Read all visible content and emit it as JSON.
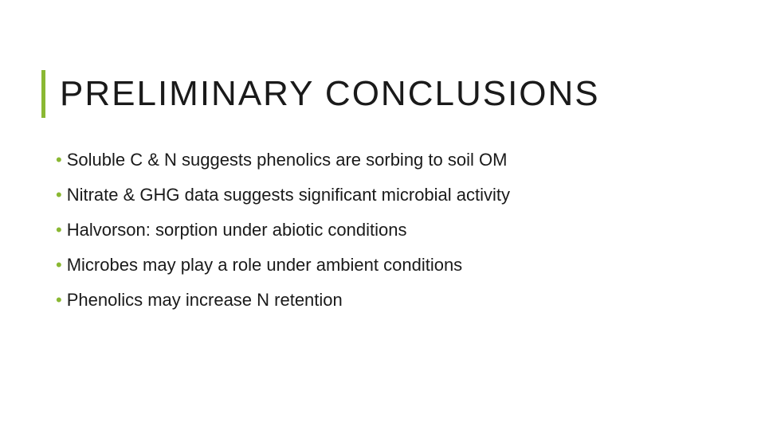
{
  "slide": {
    "title": "PRELIMINARY CONCLUSIONS",
    "title_fontsize": 44,
    "title_color": "#1a1a1a",
    "title_letter_spacing": 2,
    "accent_bar_color": "#8ab833",
    "accent_bar_width": 5,
    "accent_bar_height": 60,
    "background_color": "#ffffff",
    "bullet_color": "#8ab833",
    "bullet_glyph": "•",
    "text_color": "#1a1a1a",
    "body_fontsize": 22,
    "body_line_height": 30,
    "bullets": [
      {
        "text": "Soluble C & N suggests phenolics are sorbing to soil OM"
      },
      {
        "text": "Nitrate & GHG data suggests significant microbial activity"
      },
      {
        "text": "Halvorson: sorption under abiotic conditions"
      },
      {
        "text": "Microbes may play a role under ambient conditions"
      },
      {
        "text": "Phenolics may increase N retention"
      }
    ]
  }
}
